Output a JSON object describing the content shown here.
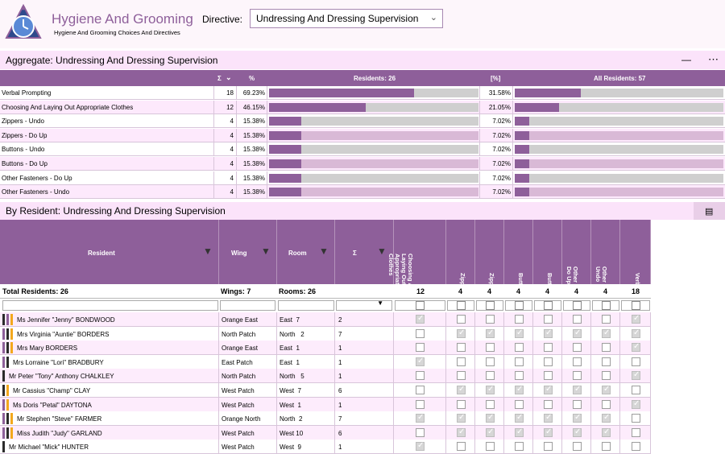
{
  "app": {
    "title": "Hygiene And Grooming",
    "subtitle": "Hygiene And Grooming Choices And Directives",
    "directive_label": "Directive:",
    "directive_value": "Undressing And Dressing Supervision"
  },
  "aggregate": {
    "title": "Aggregate: Undressing And Dressing Supervision",
    "headers": {
      "count": "Σ",
      "pct": "%",
      "residents": "Residents: 26",
      "pct2": "[%]",
      "all": "All Residents: 57"
    },
    "rows": [
      {
        "label": "Verbal Prompting",
        "count": "18",
        "pct": "69.23%",
        "pct_all": "31.58%",
        "frac": 0.6923,
        "frac_all": 0.3158
      },
      {
        "label": "Choosing And Laying Out Appropriate Clothes",
        "count": "12",
        "pct": "46.15%",
        "pct_all": "21.05%",
        "frac": 0.4615,
        "frac_all": 0.2105
      },
      {
        "label": "Zippers - Undo",
        "count": "4",
        "pct": "15.38%",
        "pct_all": "7.02%",
        "frac": 0.1538,
        "frac_all": 0.0702
      },
      {
        "label": "Zippers - Do Up",
        "count": "4",
        "pct": "15.38%",
        "pct_all": "7.02%",
        "frac": 0.1538,
        "frac_all": 0.0702
      },
      {
        "label": "Buttons - Undo",
        "count": "4",
        "pct": "15.38%",
        "pct_all": "7.02%",
        "frac": 0.1538,
        "frac_all": 0.0702
      },
      {
        "label": "Buttons - Do Up",
        "count": "4",
        "pct": "15.38%",
        "pct_all": "7.02%",
        "frac": 0.1538,
        "frac_all": 0.0702
      },
      {
        "label": "Other Fasteners - Do Up",
        "count": "4",
        "pct": "15.38%",
        "pct_all": "7.02%",
        "frac": 0.1538,
        "frac_all": 0.0702
      },
      {
        "label": "Other Fasteners - Undo",
        "count": "4",
        "pct": "15.38%",
        "pct_all": "7.02%",
        "frac": 0.1538,
        "frac_all": 0.0702
      }
    ]
  },
  "by_resident": {
    "title": "By Resident: Undressing And Dressing Supervision",
    "headers": {
      "resident": "Resident",
      "wing": "Wing",
      "room": "Room",
      "sigma": "Σ",
      "c1": "Choosing And\nLaying Out\nAppropriate\nClothes",
      "c2": "Zippers - Undo",
      "c3": "Zippers - Do Up",
      "c4": "Buttons - Undo",
      "c5": "Buttons - Do Up",
      "c6": "Other Fasteners -\nDo Up",
      "c7": "Other Fasteners -\nUndo",
      "c8": "Verbal Prompting"
    },
    "totals": {
      "residents": "Total Residents: 26",
      "wings": "Wings: 7",
      "rooms": "Rooms: 26",
      "c1": "12",
      "c2": "4",
      "c3": "4",
      "c4": "4",
      "c5": "4",
      "c6": "4",
      "c7": "4",
      "c8": "18"
    },
    "rows": [
      {
        "name": "Ms Jennifer \"Jenny\" BONDWOOD",
        "wing": "Orange East",
        "room": "East  7",
        "sigma": "2",
        "checks": [
          1,
          0,
          0,
          0,
          0,
          0,
          0,
          1
        ],
        "swatches": [
          "#2b2b2b",
          "#8e5f9a",
          "#f3a81d"
        ]
      },
      {
        "name": "Mrs Virginia \"Auntie\" BORDERS",
        "wing": "North Patch",
        "room": "North   2",
        "sigma": "7",
        "checks": [
          0,
          1,
          1,
          1,
          1,
          1,
          1,
          1
        ],
        "swatches": [
          "#8e5f9a",
          "#2b2b2b",
          "#f3a81d"
        ]
      },
      {
        "name": "Mrs Mary BORDERS",
        "wing": "Orange East",
        "room": "East  1",
        "sigma": "1",
        "checks": [
          0,
          0,
          0,
          0,
          0,
          0,
          0,
          1
        ],
        "swatches": [
          "#8e5f9a",
          "#2b2b2b",
          "#f3a81d"
        ]
      },
      {
        "name": "Mrs Lorraine \"Lori\" BRADBURY",
        "wing": "East Patch",
        "room": "East  1",
        "sigma": "1",
        "checks": [
          1,
          0,
          0,
          0,
          0,
          0,
          0,
          0
        ],
        "swatches": [
          "#8e5f9a",
          "#2b2b2b"
        ]
      },
      {
        "name": "Mr Peter \"Tony\" Anthony CHALKLEY",
        "wing": "North Patch",
        "room": "North   5",
        "sigma": "1",
        "checks": [
          0,
          0,
          0,
          0,
          0,
          0,
          0,
          1
        ],
        "swatches": [
          "#2b2b2b"
        ]
      },
      {
        "name": "Mr  Cassius \"Champ\" CLAY",
        "wing": "West Patch",
        "room": "West  7",
        "sigma": "6",
        "checks": [
          0,
          1,
          1,
          1,
          1,
          1,
          1,
          0
        ],
        "swatches": [
          "#2b2b2b",
          "#f3a81d"
        ]
      },
      {
        "name": "Ms Doris \"Petal\" DAYTONA",
        "wing": "West Patch",
        "room": "West  1",
        "sigma": "1",
        "checks": [
          0,
          0,
          0,
          0,
          0,
          0,
          0,
          1
        ],
        "swatches": [
          "#8e5f9a",
          "#f3a81d"
        ]
      },
      {
        "name": "Mr Stephen \"Steve\" FARMER",
        "wing": "Orange North",
        "room": "North  2",
        "sigma": "7",
        "checks": [
          1,
          1,
          1,
          1,
          1,
          1,
          1,
          0
        ],
        "swatches": [
          "#8e5f9a",
          "#2b2b2b",
          "#f3a81d"
        ]
      },
      {
        "name": "Miss Judith \"Judy\" GARLAND",
        "wing": "West Patch",
        "room": "West 10",
        "sigma": "6",
        "checks": [
          0,
          1,
          1,
          1,
          1,
          1,
          1,
          0
        ],
        "swatches": [
          "#8e5f9a",
          "#2b2b2b",
          "#f3a81d"
        ]
      },
      {
        "name": "Mr Michael \"Mick\" HUNTER",
        "wing": "West Patch",
        "room": "West  9",
        "sigma": "1",
        "checks": [
          1,
          0,
          0,
          0,
          0,
          0,
          0,
          0
        ],
        "swatches": [
          "#2b2b2b"
        ]
      }
    ]
  },
  "colors": {
    "accent": "#8e5f9a",
    "bar_track": "#cfcfcf",
    "band": "#fbe3fa"
  }
}
